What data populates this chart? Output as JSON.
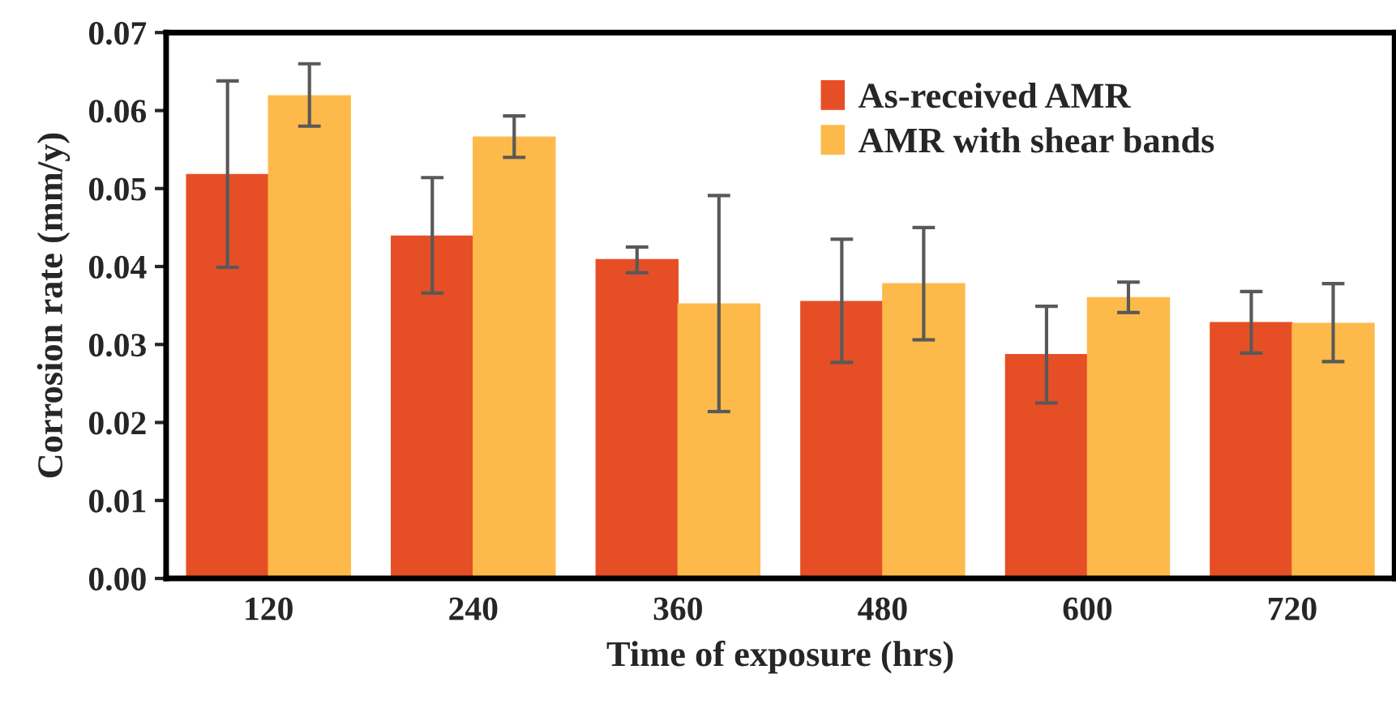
{
  "chart_data": {
    "type": "bar",
    "xlabel": "Time of exposure (hrs)",
    "ylabel": "Corrosion rate (mm/y)",
    "categories": [
      "120",
      "240",
      "360",
      "480",
      "600",
      "720"
    ],
    "series": [
      {
        "name": "As-received AMR",
        "color": "#e64e25",
        "values": [
          0.0518,
          0.0439,
          0.0409,
          0.0355,
          0.0287,
          0.0328
        ],
        "errors": [
          [
            0.0399,
            0.0638
          ],
          [
            0.0366,
            0.0514
          ],
          [
            0.0392,
            0.0425
          ],
          [
            0.0277,
            0.0435
          ],
          [
            0.0225,
            0.0349
          ],
          [
            0.0289,
            0.0368
          ]
        ]
      },
      {
        "name": "AMR with shear bands",
        "color": "#fdb94a",
        "values": [
          0.0619,
          0.0566,
          0.0352,
          0.0378,
          0.036,
          0.0327
        ],
        "errors": [
          [
            0.058,
            0.066
          ],
          [
            0.054,
            0.0593
          ],
          [
            0.0214,
            0.0491
          ],
          [
            0.0306,
            0.045
          ],
          [
            0.0341,
            0.038
          ],
          [
            0.0278,
            0.0378
          ]
        ]
      }
    ],
    "ylim": [
      0,
      0.07
    ],
    "yticks": [
      {
        "value": 0,
        "label": "0.00"
      },
      {
        "value": 0.01,
        "label": "0.01"
      },
      {
        "value": 0.02,
        "label": "0.02"
      },
      {
        "value": 0.03,
        "label": "0.03"
      },
      {
        "value": 0.04,
        "label": "0.04"
      },
      {
        "value": 0.05,
        "label": "0.05"
      },
      {
        "value": 0.06,
        "label": "0.06"
      },
      {
        "value": 0.07,
        "label": "0.07"
      }
    ],
    "grid": false,
    "legend": "top right"
  }
}
